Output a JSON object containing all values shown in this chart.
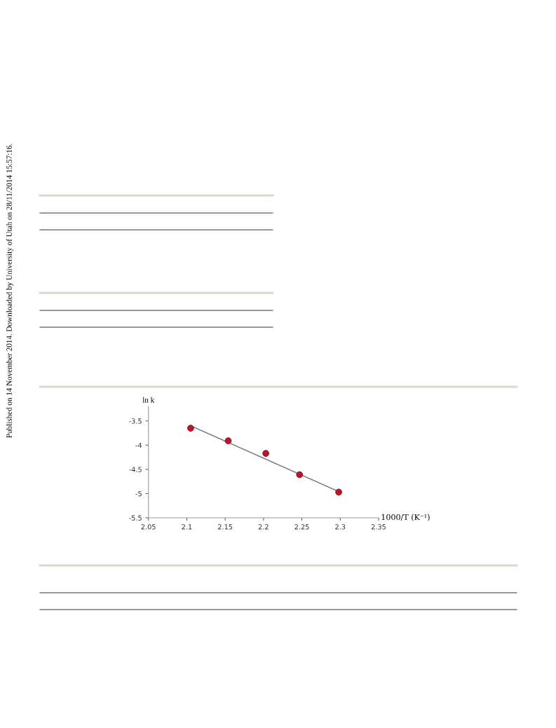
{
  "chart_data": {
    "type": "scatter",
    "xlabel": "1000/T (K⁻¹)",
    "ylabel": "ln k",
    "annotations": [
      "Published on 14 November 2014. Downloaded by University of Utah on 28/11/2014 15:57:16."
    ],
    "series": [
      {
        "color": "#c0142a",
        "x": [
          2.105,
          2.154,
          2.203,
          2.247,
          2.298
        ],
        "values": [
          -3.65,
          -3.91,
          -4.17,
          -4.61,
          -4.97
        ],
        "marker": "circle"
      },
      {
        "type": "line",
        "color": "#707070",
        "x": [
          2.105,
          2.298
        ],
        "values": [
          -3.6,
          -4.96
        ],
        "marker": "none",
        "line_style": "solid"
      }
    ],
    "xlim": [
      2.05,
      2.35
    ],
    "ylim": [
      -5.5,
      -3.2
    ],
    "xticks": [
      2.05,
      2.1,
      2.15,
      2.2,
      2.25,
      2.3,
      2.35
    ],
    "yticks": [
      -5.5,
      -5,
      -4.5,
      -4,
      -3.5
    ],
    "grid": false,
    "legend": false
  }
}
